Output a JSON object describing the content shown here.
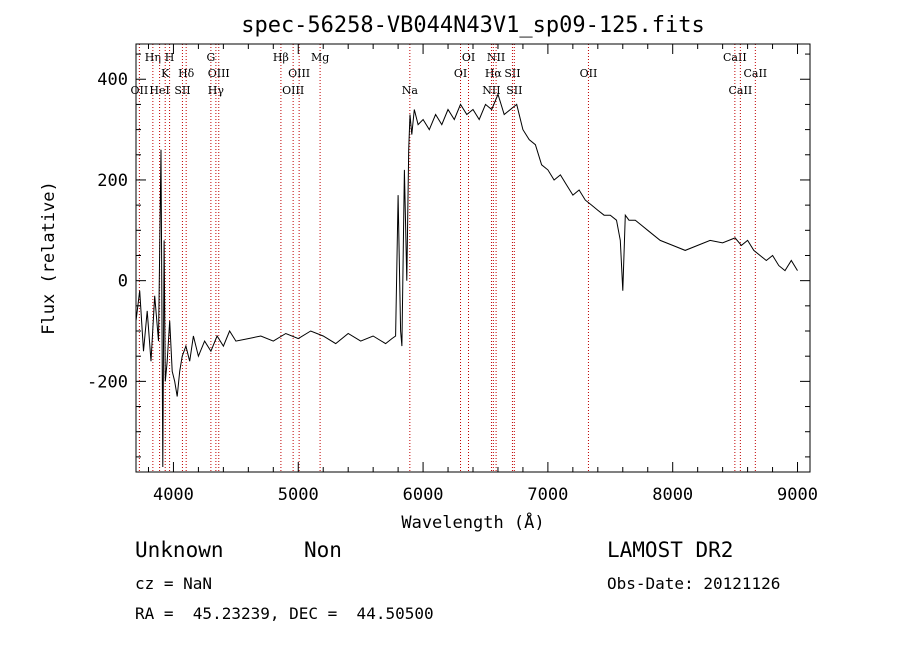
{
  "chart_data": {
    "type": "line",
    "title": "spec-56258-VB044N43V1_sp09-125.fits",
    "xlabel": "Wavelength (Å)",
    "ylabel": "Flux (relative)",
    "xlim": [
      3700,
      9100
    ],
    "ylim": [
      -380,
      470
    ],
    "xticks": [
      4000,
      5000,
      6000,
      7000,
      8000,
      9000
    ],
    "yticks": [
      -200,
      0,
      200,
      400
    ],
    "series": [
      {
        "name": "flux",
        "x": [
          3700,
          3730,
          3760,
          3790,
          3820,
          3850,
          3880,
          3900,
          3915,
          3925,
          3935,
          3950,
          3970,
          3990,
          4010,
          4030,
          4050,
          4070,
          4100,
          4130,
          4160,
          4200,
          4250,
          4300,
          4350,
          4400,
          4450,
          4500,
          4600,
          4700,
          4800,
          4900,
          5000,
          5100,
          5200,
          5300,
          5400,
          5500,
          5600,
          5700,
          5750,
          5780,
          5800,
          5820,
          5830,
          5850,
          5870,
          5885,
          5895,
          5910,
          5930,
          5960,
          6000,
          6050,
          6100,
          6150,
          6200,
          6250,
          6300,
          6350,
          6400,
          6450,
          6500,
          6550,
          6600,
          6650,
          6700,
          6750,
          6800,
          6850,
          6900,
          6950,
          7000,
          7050,
          7100,
          7150,
          7200,
          7250,
          7300,
          7350,
          7400,
          7450,
          7500,
          7550,
          7580,
          7600,
          7620,
          7650,
          7700,
          7750,
          7800,
          7900,
          8000,
          8100,
          8200,
          8300,
          8400,
          8500,
          8550,
          8600,
          8650,
          8700,
          8750,
          8800,
          8850,
          8900,
          8950,
          9000
        ],
        "y": [
          -80,
          -20,
          -140,
          -60,
          -160,
          -30,
          -120,
          260,
          -370,
          80,
          -200,
          -160,
          -80,
          -180,
          -200,
          -230,
          -180,
          -150,
          -130,
          -160,
          -110,
          -150,
          -120,
          -140,
          -110,
          -130,
          -100,
          -120,
          -115,
          -110,
          -120,
          -105,
          -115,
          -100,
          -110,
          -125,
          -105,
          -120,
          -110,
          -125,
          -115,
          -110,
          170,
          -100,
          -130,
          220,
          0,
          260,
          330,
          290,
          340,
          310,
          320,
          300,
          330,
          310,
          340,
          320,
          350,
          330,
          340,
          320,
          350,
          340,
          370,
          330,
          340,
          350,
          300,
          280,
          270,
          230,
          220,
          200,
          210,
          190,
          170,
          180,
          160,
          150,
          140,
          130,
          130,
          120,
          80,
          -20,
          130,
          120,
          120,
          110,
          100,
          80,
          70,
          60,
          70,
          80,
          75,
          85,
          70,
          80,
          60,
          50,
          40,
          50,
          30,
          20,
          40,
          20
        ]
      }
    ],
    "emission_lines": [
      {
        "label": "Hη",
        "wave": 3835,
        "row": 0
      },
      {
        "label": "H",
        "wave": 3969,
        "row": 0
      },
      {
        "label": "K",
        "wave": 3934,
        "row": 1
      },
      {
        "label": "Hδ",
        "wave": 4102,
        "row": 1
      },
      {
        "label": "OII",
        "wave": 3727,
        "row": 2
      },
      {
        "label": "HeI",
        "wave": 3889,
        "row": 2
      },
      {
        "label": "SII",
        "wave": 4072,
        "row": 2
      },
      {
        "label": "G",
        "wave": 4300,
        "row": 0
      },
      {
        "label": "OIII",
        "wave": 4363,
        "row": 1
      },
      {
        "label": "Hγ",
        "wave": 4340,
        "row": 2
      },
      {
        "label": "Hβ",
        "wave": 4861,
        "row": 0
      },
      {
        "label": "OIII",
        "wave": 5007,
        "row": 1
      },
      {
        "label": "OIII",
        "wave": 4959,
        "row": 2
      },
      {
        "label": "Mg",
        "wave": 5175,
        "row": 0
      },
      {
        "label": "Na",
        "wave": 5894,
        "row": 2
      },
      {
        "label": "OI",
        "wave": 6364,
        "row": 0
      },
      {
        "label": "OI",
        "wave": 6300,
        "row": 1
      },
      {
        "label": "NII",
        "wave": 6585,
        "row": 0
      },
      {
        "label": "Hα",
        "wave": 6563,
        "row": 1
      },
      {
        "label": "SII",
        "wave": 6716,
        "row": 1
      },
      {
        "label": "NII",
        "wave": 6548,
        "row": 2
      },
      {
        "label": "SII",
        "wave": 6731,
        "row": 2
      },
      {
        "label": "OII",
        "wave": 7325,
        "row": 1
      },
      {
        "label": "CaII",
        "wave": 8498,
        "row": 0
      },
      {
        "label": "CaII",
        "wave": 8662,
        "row": 1
      },
      {
        "label": "CaII",
        "wave": 8542,
        "row": 2
      }
    ]
  },
  "info": {
    "class": "Unknown",
    "subclass": "Non",
    "cz": "cz = NaN",
    "radec": "RA =  45.23239, DEC =  44.50500",
    "survey": "LAMOST DR2",
    "obsdate": "Obs-Date: 20121126"
  }
}
